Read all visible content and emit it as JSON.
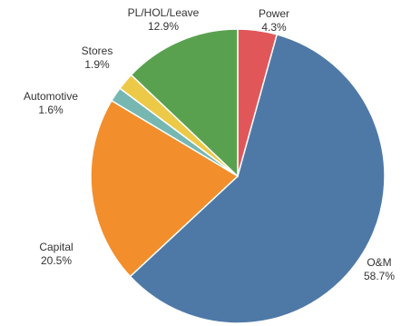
{
  "chart_data": {
    "type": "pie",
    "title": "",
    "slices": [
      {
        "label": "Power",
        "value": 4.3,
        "value_label": "4.3%",
        "color": "#E15759"
      },
      {
        "label": "O&M",
        "value": 58.7,
        "value_label": "58.7%",
        "color": "#4E79A7"
      },
      {
        "label": "Capital",
        "value": 20.5,
        "value_label": "20.5%",
        "color": "#F28E2B"
      },
      {
        "label": "Automotive",
        "value": 1.6,
        "value_label": "1.6%",
        "color": "#76B7B2"
      },
      {
        "label": "Stores",
        "value": 1.9,
        "value_label": "1.9%",
        "color": "#EDC948"
      },
      {
        "label": "PL/HOL/Leave",
        "value": 12.9,
        "value_label": "12.9%",
        "color": "#59A14F"
      }
    ],
    "start_angle": "12 o'clock",
    "direction": "clockwise",
    "legend": "none"
  }
}
